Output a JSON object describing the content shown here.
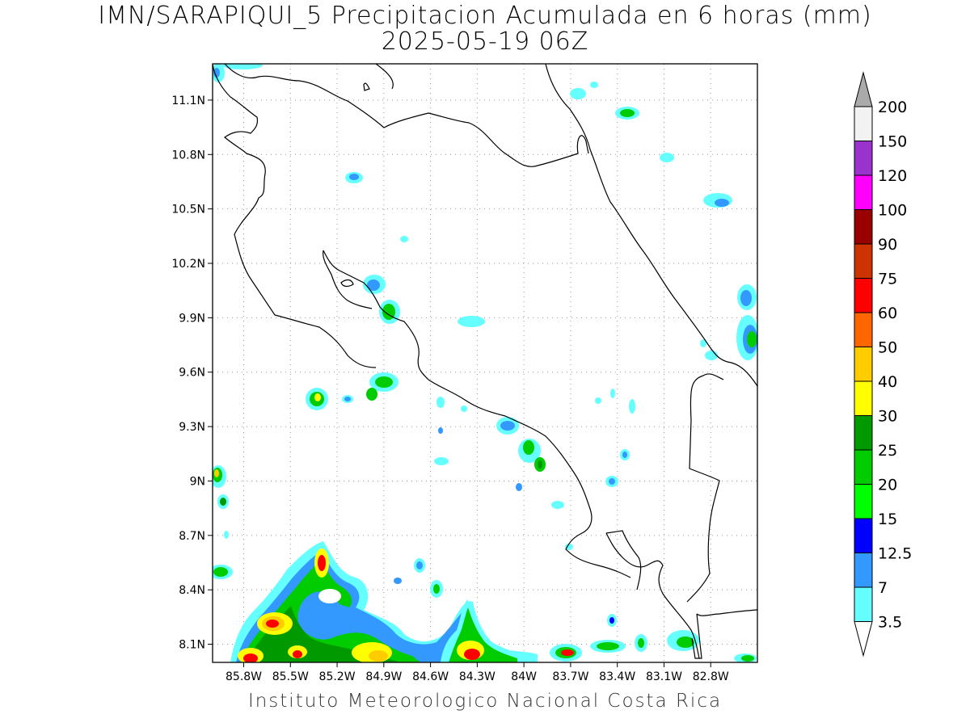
{
  "title": {
    "line1": "IMN/SARAPIQUI_5 Precipitacion Acumulada en 6 horas (mm)",
    "line2": "2025-05-19 06Z"
  },
  "footer": "Instituto Meteorologico Nacional Costa Rica",
  "map": {
    "lon_range": [
      -86.0,
      -82.5
    ],
    "lat_range": [
      8.0,
      11.3
    ],
    "y_ticks": [
      {
        "lat": 11.1,
        "label": "11.1N"
      },
      {
        "lat": 10.8,
        "label": "10.8N"
      },
      {
        "lat": 10.5,
        "label": "10.5N"
      },
      {
        "lat": 10.2,
        "label": "10.2N"
      },
      {
        "lat": 9.9,
        "label": "9.9N"
      },
      {
        "lat": 9.6,
        "label": "9.6N"
      },
      {
        "lat": 9.3,
        "label": "9.3N"
      },
      {
        "lat": 9.0,
        "label": "9N"
      },
      {
        "lat": 8.7,
        "label": "8.7N"
      },
      {
        "lat": 8.4,
        "label": "8.4N"
      },
      {
        "lat": 8.1,
        "label": "8.1N"
      }
    ],
    "x_ticks": [
      {
        "lon": -85.8,
        "label": "85.8W"
      },
      {
        "lon": -85.5,
        "label": "85.5W"
      },
      {
        "lon": -85.2,
        "label": "85.2W"
      },
      {
        "lon": -84.9,
        "label": "84.9W"
      },
      {
        "lon": -84.6,
        "label": "84.6W"
      },
      {
        "lon": -84.3,
        "label": "84.3W"
      },
      {
        "lon": -84.0,
        "label": "84W"
      },
      {
        "lon": -83.7,
        "label": "83.7W"
      },
      {
        "lon": -83.4,
        "label": "83.4W"
      },
      {
        "lon": -83.1,
        "label": "83.1W"
      },
      {
        "lon": -82.8,
        "label": "82.8W"
      }
    ],
    "grid": "dotted"
  },
  "colorbar": {
    "labels": [
      "3.5",
      "7",
      "12.5",
      "15",
      "20",
      "25",
      "30",
      "40",
      "50",
      "60",
      "75",
      "90",
      "100",
      "120",
      "150",
      "200"
    ],
    "colors": [
      "#66ffff",
      "#3399ff",
      "#0000ff",
      "#00ff00",
      "#00cc00",
      "#009900",
      "#ffff00",
      "#ffcc00",
      "#ff6600",
      "#ff0000",
      "#cc3300",
      "#990000",
      "#ff00ff",
      "#9933cc",
      "#f2f2f2",
      "#aaaaaa"
    ]
  }
}
